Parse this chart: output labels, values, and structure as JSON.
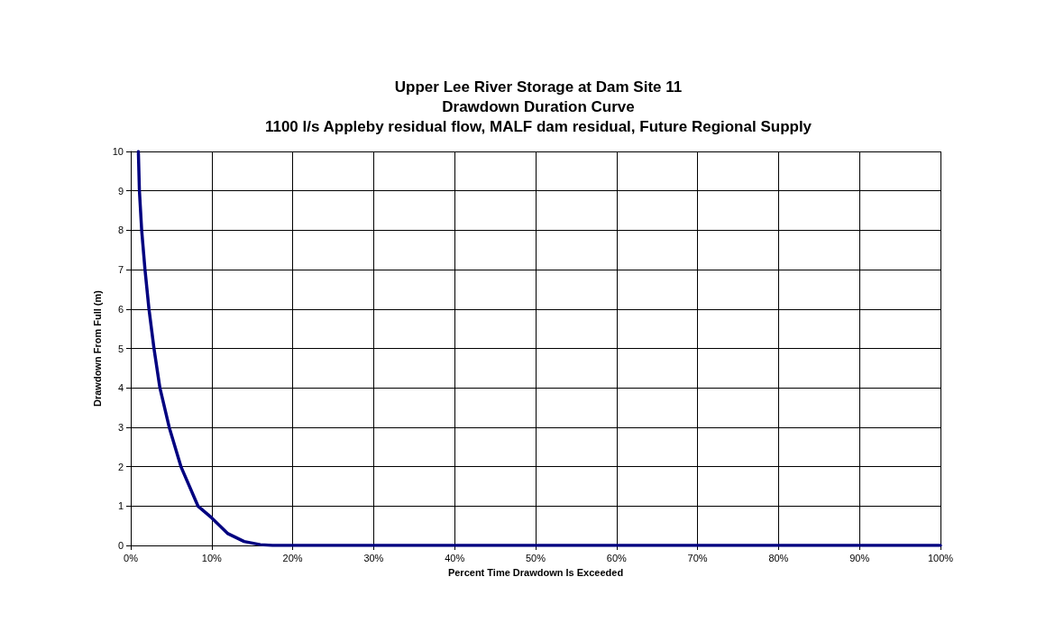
{
  "chart_data": {
    "type": "line",
    "title": "Upper Lee River Storage at Dam Site 11\nDrawdown Duration Curve\n1100 l/s Appleby residual flow, MALF dam residual, Future Regional Supply",
    "xlabel": "Percent Time Drawdown Is Exceeded",
    "ylabel": "Drawdown From Full (m)",
    "series": [
      {
        "color": "#000080",
        "x": [
          0.94,
          1.07,
          1.35,
          1.76,
          2.25,
          2.87,
          3.6,
          4.75,
          6.2,
          8.3,
          10,
          12,
          14,
          16,
          17.5,
          20,
          100
        ],
        "values": [
          10,
          9,
          8,
          7,
          6,
          5,
          4,
          3,
          2,
          1,
          0.7,
          0.3,
          0.1,
          0.02,
          0,
          0,
          0
        ]
      }
    ],
    "xlim": [
      0,
      100
    ],
    "xticks": [
      {
        "value": 0,
        "label": "0%"
      },
      {
        "value": 10,
        "label": "10%"
      },
      {
        "value": 20,
        "label": "20%"
      },
      {
        "value": 30,
        "label": "30%"
      },
      {
        "value": 40,
        "label": "40%"
      },
      {
        "value": 50,
        "label": "50%"
      },
      {
        "value": 60,
        "label": "60%"
      },
      {
        "value": 70,
        "label": "70%"
      },
      {
        "value": 80,
        "label": "80%"
      },
      {
        "value": 90,
        "label": "90%"
      },
      {
        "value": 100,
        "label": "100%"
      }
    ],
    "ylim": [
      0,
      10
    ],
    "yticks": [
      0,
      1,
      2,
      3,
      4,
      5,
      6,
      7,
      8,
      9,
      10
    ],
    "grid": true,
    "marker": "none",
    "line_style": "solid"
  }
}
